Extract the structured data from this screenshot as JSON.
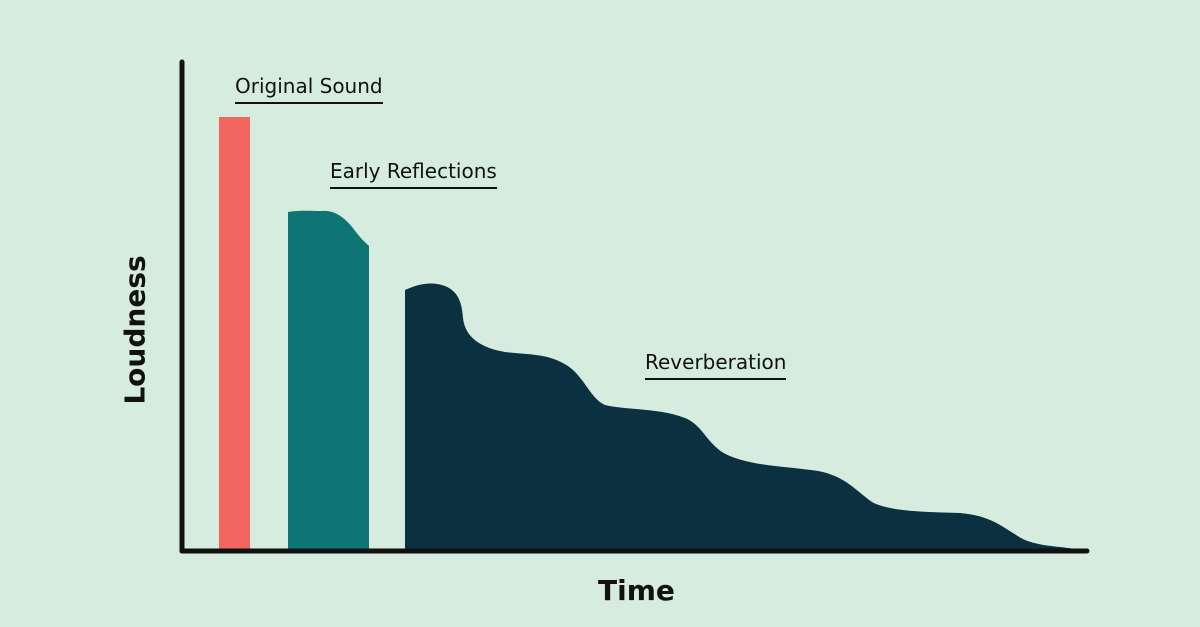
{
  "labels": {
    "original_sound": "Original Sound",
    "early_reflections": "Early Reflections",
    "reverberation": "Reverberation"
  },
  "axes": {
    "x_title": "Time",
    "y_title": "Loudness"
  },
  "colors": {
    "background": "#d6ecdf",
    "axis": "#111111",
    "original_sound": "#f26660",
    "early_reflections": "#0e7574",
    "reverberation": "#0b303f"
  }
}
